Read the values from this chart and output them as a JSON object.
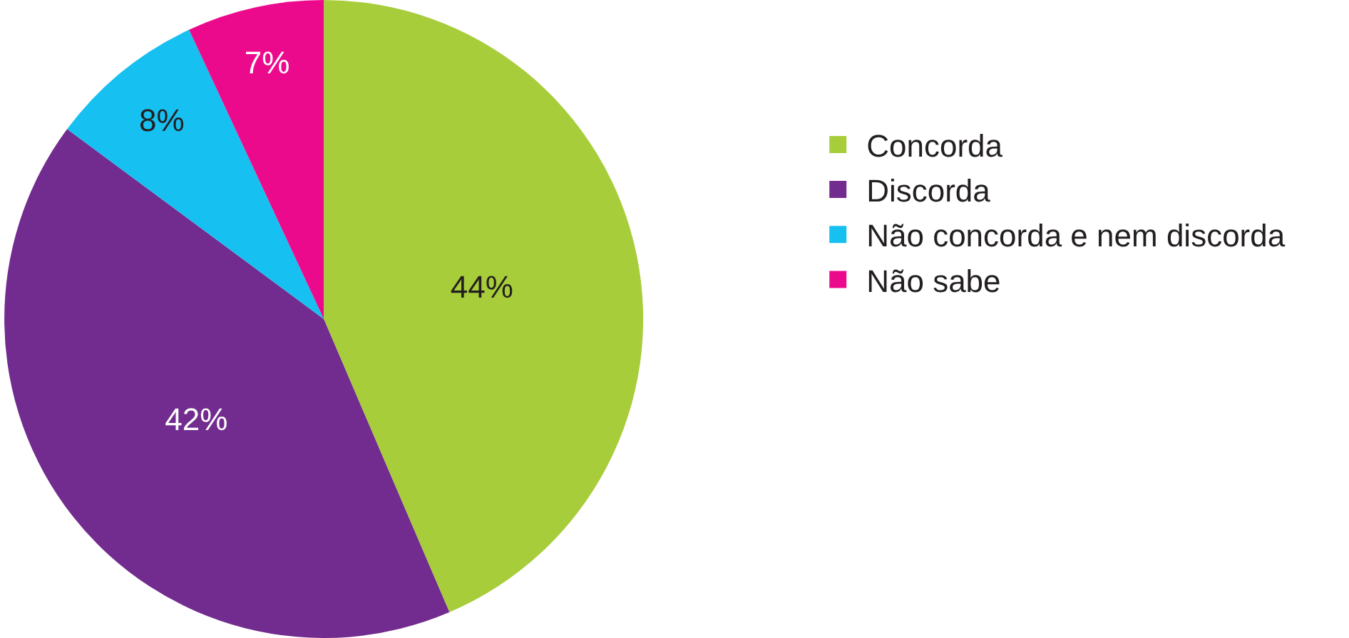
{
  "chart_data": {
    "type": "pie",
    "categories": [
      "Concorda",
      "Discorda",
      "Não concorda e nem discorda",
      "Não sabe"
    ],
    "values": [
      44,
      42,
      8,
      7
    ],
    "colors": [
      "#a8cd3a",
      "#722b8e",
      "#16c0f0",
      "#ec0a8c"
    ],
    "value_labels": [
      "44%",
      "42%",
      "8%",
      "7%"
    ],
    "legend": "right"
  }
}
